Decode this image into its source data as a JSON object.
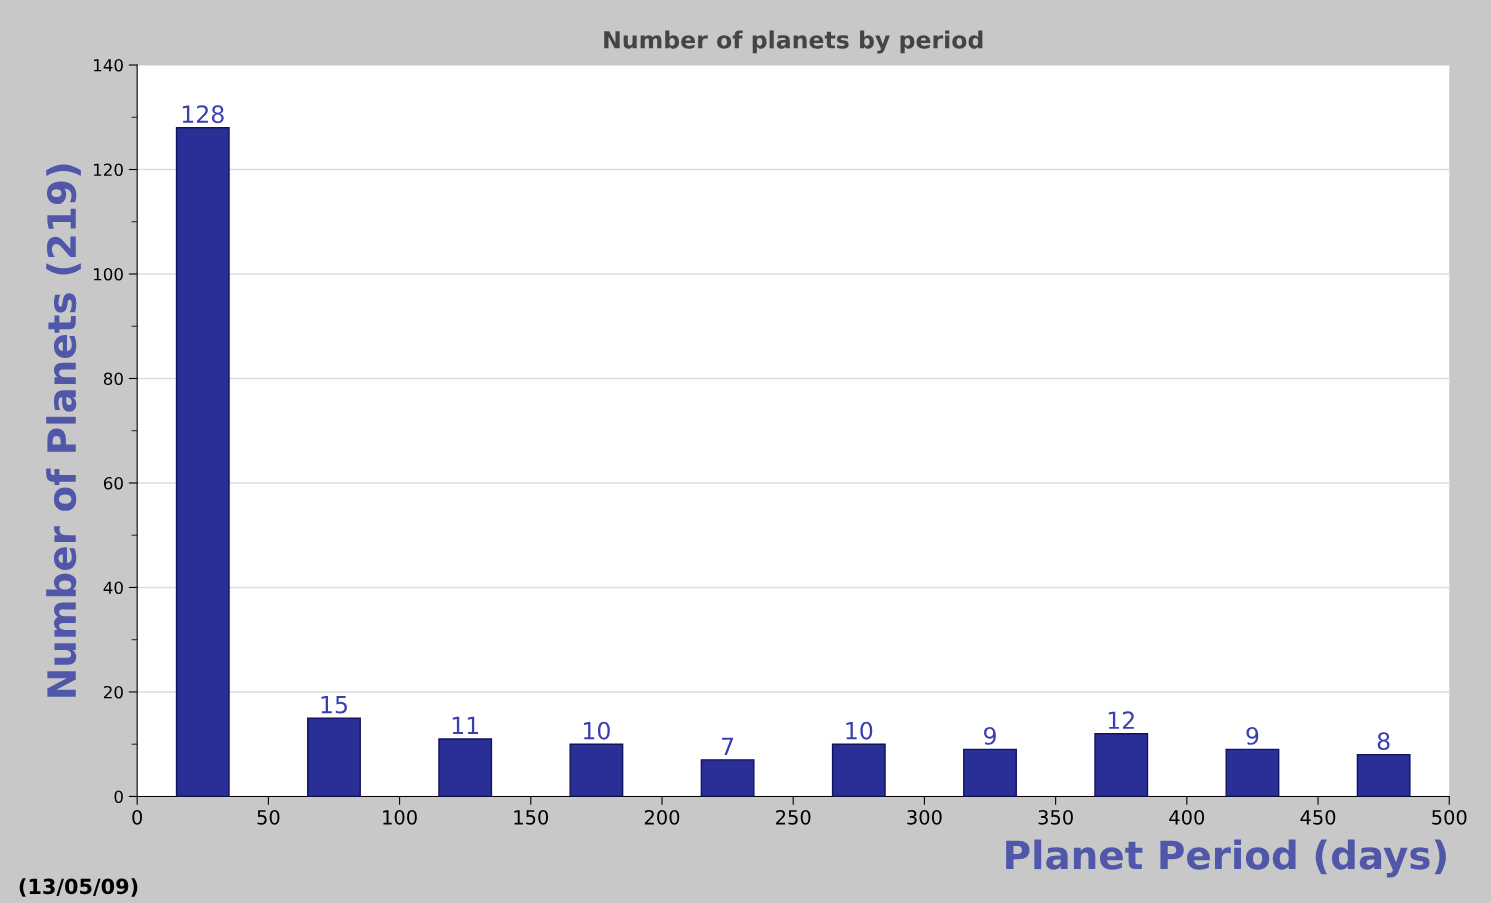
{
  "chart_data": {
    "type": "bar",
    "title": "Number of planets by period",
    "xlabel": "Planet Period (days)",
    "ylabel": "Number of Planets (219)",
    "x": [
      25,
      75,
      125,
      175,
      225,
      275,
      325,
      375,
      425,
      475
    ],
    "series": [
      {
        "color": "#2a2f98",
        "values": [
          128,
          15,
          11,
          10,
          7,
          10,
          9,
          12,
          9,
          8
        ]
      }
    ],
    "data_labels": true,
    "xlim": [
      0,
      500
    ],
    "xticks": [
      0,
      50,
      100,
      150,
      200,
      250,
      300,
      350,
      400,
      450,
      500
    ],
    "ylim": [
      0,
      140
    ],
    "yticks": [
      0,
      20,
      40,
      60,
      80,
      100,
      120,
      140
    ],
    "grid": "y",
    "annotations": [
      "(13/05/09)"
    ]
  }
}
